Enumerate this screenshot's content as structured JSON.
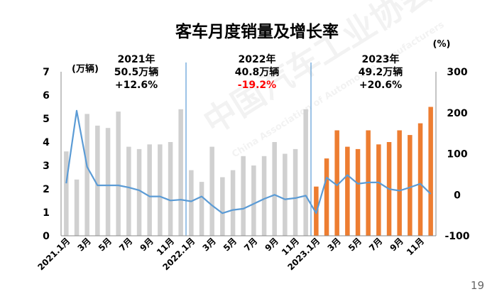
{
  "page_number": "19",
  "watermark": {
    "cn": "中国汽车工业协会",
    "en": "China Association of Automobile Manufacturers"
  },
  "colors": {
    "bar_past": "#d0d0d0",
    "bar_2023": "#ed7d31",
    "line": "#5b9bd5",
    "divider": "#5b9bd5",
    "negative_text": "#ff0000",
    "text": "#000000"
  },
  "chart_data": {
    "type": "bar",
    "title": "客车月度销量及增长率",
    "left_unit": "(万辆)",
    "right_unit": "(%)",
    "ylim": [
      0,
      7
    ],
    "yticks": [
      "0",
      "1",
      "2",
      "3",
      "4",
      "5",
      "6",
      "7"
    ],
    "y2lim": [
      -100,
      300
    ],
    "y2ticks": [
      "-100",
      "0",
      "100",
      "200",
      "300"
    ],
    "x_tick_labels": [
      "2021.1月",
      "3月",
      "5月",
      "7月",
      "9月",
      "11月",
      "2022.1月",
      "3月",
      "5月",
      "7月",
      "9月",
      "11月",
      "2023.1月",
      "3月",
      "5月",
      "7月",
      "9月",
      "11月"
    ],
    "series": [
      {
        "type": "bar",
        "values": [
          3.6,
          2.4,
          5.2,
          4.7,
          4.6,
          5.3,
          3.8,
          3.7,
          3.9,
          3.9,
          4.0,
          5.4,
          2.8,
          2.3,
          3.8,
          2.5,
          2.8,
          3.4,
          3.0,
          3.4,
          4.0,
          3.5,
          3.7,
          5.4,
          2.1,
          3.3,
          4.5,
          3.8,
          3.7,
          4.5,
          3.9,
          4.0,
          4.5,
          4.3,
          4.8,
          5.5
        ]
      },
      {
        "type": "line",
        "axis": "right",
        "values": [
          28,
          205,
          68,
          23,
          23,
          23,
          18,
          11,
          -4,
          -4,
          -14,
          -12,
          -16,
          -4,
          -26,
          -45,
          -37,
          -34,
          -22,
          -10,
          0,
          -11,
          -8,
          -2,
          -45,
          42,
          23,
          48,
          27,
          30,
          30,
          14,
          10,
          18,
          27,
          2
        ]
      }
    ],
    "annotations": [
      {
        "year": "2021年",
        "sales": "50.5万辆",
        "growth": "+12.6%",
        "negative": false
      },
      {
        "year": "2022年",
        "sales": "40.8万辆",
        "growth": "-19.2%",
        "negative": true
      },
      {
        "year": "2023年",
        "sales": "49.2万辆",
        "growth": "+20.6%",
        "negative": false
      }
    ]
  }
}
